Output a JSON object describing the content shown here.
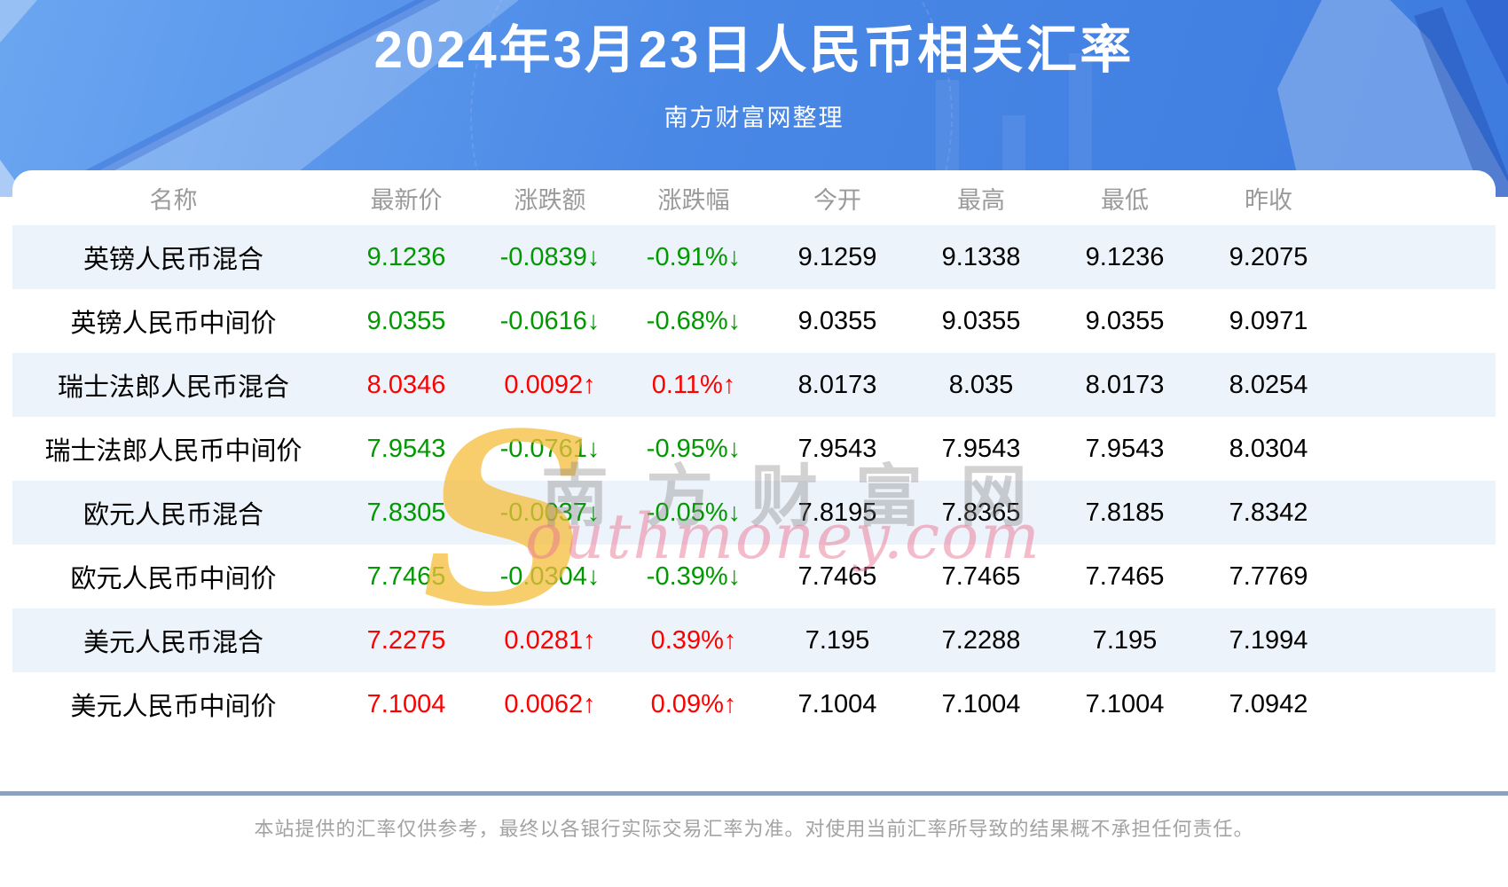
{
  "header": {
    "title": "2024年3月23日人民币相关汇率",
    "subtitle": "南方财富网整理"
  },
  "table": {
    "columns": [
      "名称",
      "最新价",
      "涨跌额",
      "涨跌幅",
      "今开",
      "最高",
      "最低",
      "昨收"
    ],
    "rows": [
      {
        "name": "英镑人民币混合",
        "last": "9.1236",
        "change": "-0.0839↓",
        "pct": "-0.91%↓",
        "open": "9.1259",
        "high": "9.1338",
        "low": "9.1236",
        "prev": "9.2075",
        "dir": "down"
      },
      {
        "name": "英镑人民币中间价",
        "last": "9.0355",
        "change": "-0.0616↓",
        "pct": "-0.68%↓",
        "open": "9.0355",
        "high": "9.0355",
        "low": "9.0355",
        "prev": "9.0971",
        "dir": "down"
      },
      {
        "name": "瑞士法郎人民币混合",
        "last": "8.0346",
        "change": "0.0092↑",
        "pct": "0.11%↑",
        "open": "8.0173",
        "high": "8.035",
        "low": "8.0173",
        "prev": "8.0254",
        "dir": "up"
      },
      {
        "name": "瑞士法郎人民币中间价",
        "last": "7.9543",
        "change": "-0.0761↓",
        "pct": "-0.95%↓",
        "open": "7.9543",
        "high": "7.9543",
        "low": "7.9543",
        "prev": "8.0304",
        "dir": "down"
      },
      {
        "name": "欧元人民币混合",
        "last": "7.8305",
        "change": "-0.0037↓",
        "pct": "-0.05%↓",
        "open": "7.8195",
        "high": "7.8365",
        "low": "7.8185",
        "prev": "7.8342",
        "dir": "down"
      },
      {
        "name": "欧元人民币中间价",
        "last": "7.7465",
        "change": "-0.0304↓",
        "pct": "-0.39%↓",
        "open": "7.7465",
        "high": "7.7465",
        "low": "7.7465",
        "prev": "7.7769",
        "dir": "down"
      },
      {
        "name": "美元人民币混合",
        "last": "7.2275",
        "change": "0.0281↑",
        "pct": "0.39%↑",
        "open": "7.195",
        "high": "7.2288",
        "low": "7.195",
        "prev": "7.1994",
        "dir": "up"
      },
      {
        "name": "美元人民币中间价",
        "last": "7.1004",
        "change": "0.0062↑",
        "pct": "0.09%↑",
        "open": "7.1004",
        "high": "7.1004",
        "low": "7.1004",
        "prev": "7.0942",
        "dir": "up"
      }
    ]
  },
  "watermark": {
    "s_glyph": "S",
    "cn_text": "南方财富网",
    "en_text": "outhmoney.com"
  },
  "footer": {
    "disclaimer": "本站提供的汇率仅供参考，最终以各银行实际交易汇率为准。对使用当前汇率所导致的结果概不承担任何责任。"
  },
  "colors": {
    "up_red": "#fe0000",
    "down_green": "#009900",
    "stripe_blue": "#edf3fa",
    "header_gray": "#9a9a9a",
    "footer_gray": "#a3a3a3",
    "divider_blue_gray": "#8ca0bf",
    "hero_from": "#6ba6f1",
    "hero_mid": "#4a88e6",
    "hero_to": "#3d7bdf"
  },
  "chart_data": {
    "type": "table",
    "title": "2024年3月23日人民币相关汇率",
    "subtitle": "南方财富网整理",
    "columns": [
      "名称",
      "最新价",
      "涨跌额",
      "涨跌幅",
      "今开",
      "最高",
      "最低",
      "昨收"
    ],
    "rows": [
      [
        "英镑人民币混合",
        9.1236,
        -0.0839,
        "-0.91%",
        9.1259,
        9.1338,
        9.1236,
        9.2075
      ],
      [
        "英镑人民币中间价",
        9.0355,
        -0.0616,
        "-0.68%",
        9.0355,
        9.0355,
        9.0355,
        9.0971
      ],
      [
        "瑞士法郎人民币混合",
        8.0346,
        0.0092,
        "0.11%",
        8.0173,
        8.035,
        8.0173,
        8.0254
      ],
      [
        "瑞士法郎人民币中间价",
        7.9543,
        -0.0761,
        "-0.95%",
        7.9543,
        7.9543,
        7.9543,
        8.0304
      ],
      [
        "欧元人民币混合",
        7.8305,
        -0.0037,
        "-0.05%",
        7.8195,
        7.8365,
        7.8185,
        7.8342
      ],
      [
        "欧元人民币中间价",
        7.7465,
        -0.0304,
        "-0.39%",
        7.7465,
        7.7465,
        7.7465,
        7.7769
      ],
      [
        "美元人民币混合",
        7.2275,
        0.0281,
        "0.39%",
        7.195,
        7.2288,
        7.195,
        7.1994
      ],
      [
        "美元人民币中间价",
        7.1004,
        0.0062,
        "0.09%",
        7.1004,
        7.1004,
        7.1004,
        7.0942
      ]
    ]
  }
}
